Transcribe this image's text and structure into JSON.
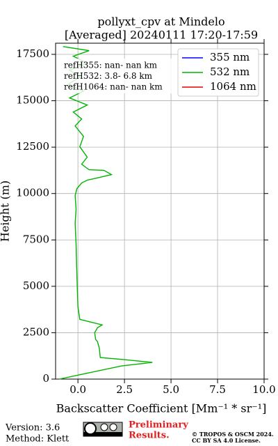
{
  "chart_data": {
    "type": "profile",
    "title": "pollyxt_cpv at Mindelo",
    "subtitle": "[Averaged] 20240111 17:20-17:59",
    "x_label": "Backscatter Coefficient [Mm⁻¹ * sr⁻¹]",
    "y_label": "Height (m)",
    "heights": [
      0,
      712,
      900,
      1050,
      1160,
      1650,
      2020,
      2140,
      2500,
      2770,
      2920,
      3220,
      3900,
      5400,
      7270,
      8400,
      9150,
      9900,
      10270,
      10570,
      10720,
      10830,
      11020,
      11250,
      11280,
      11580,
      11960,
      12520,
      13080,
      13640,
      14020,
      14390,
      14770,
      15150,
      15520,
      15900,
      16270,
      16650,
      17020,
      17400,
      17700,
      17920
    ],
    "series": [
      {
        "name": "355 nm",
        "color": "#0000ff",
        "values": [
          null,
          null,
          null,
          null,
          null,
          null,
          null,
          null,
          null,
          null,
          null,
          null,
          null,
          null,
          null,
          null,
          null,
          null,
          null,
          null,
          null,
          null,
          null,
          null,
          null,
          null,
          null,
          null,
          null,
          null,
          null,
          null,
          null,
          null,
          null,
          null,
          null,
          null,
          null,
          null,
          null,
          null
        ]
      },
      {
        "name": "532 nm",
        "color": "#00b400",
        "values": [
          -1.0,
          2.35,
          4.0,
          2.5,
          1.2,
          1.15,
          1.05,
          0.95,
          0.9,
          1.05,
          1.3,
          0.1,
          0.0,
          -0.05,
          -0.1,
          -0.15,
          -0.1,
          -0.15,
          -0.05,
          0.2,
          0.5,
          1.0,
          1.8,
          1.4,
          0.6,
          0.2,
          0.5,
          0.1,
          0.3,
          -0.15,
          0.2,
          -0.25,
          0.5,
          -0.45,
          0.3,
          -0.5,
          0.1,
          -0.45,
          0.5,
          -0.25,
          0.6,
          -0.8
        ]
      },
      {
        "name": "1064 nm",
        "color": "#e00000",
        "values": [
          null,
          null,
          null,
          null,
          null,
          null,
          null,
          null,
          null,
          null,
          null,
          null,
          null,
          null,
          null,
          null,
          null,
          null,
          null,
          null,
          null,
          null,
          null,
          null,
          null,
          null,
          null,
          null,
          null,
          null,
          null,
          null,
          null,
          null,
          null,
          null,
          null,
          null,
          null,
          null,
          null,
          null
        ]
      }
    ],
    "annotations": [
      "refH355:  nan- nan km",
      "refH532:  3.8- 6.8 km",
      "refH1064:  nan- nan km"
    ],
    "xlim": [
      -1.2,
      10
    ],
    "xticks": [
      {
        "value": 0,
        "label": "0.0"
      },
      2.5,
      {
        "value": 5,
        "label": "5.0"
      },
      7.5,
      {
        "value": 10,
        "label": "10.0"
      }
    ],
    "ylim": [
      0,
      18100
    ],
    "yticks": [
      0,
      2500,
      5000,
      7500,
      10000,
      12500,
      15000,
      17500
    ],
    "grid": true,
    "legend": "upper-right"
  },
  "footer": {
    "version": "Version: 3.6",
    "method": "Method: Klett",
    "notice": [
      "Preliminary",
      "Results."
    ],
    "license": [
      "© TROPOS & OSCM 2024.",
      "CC BY SA 4.0 License."
    ]
  }
}
